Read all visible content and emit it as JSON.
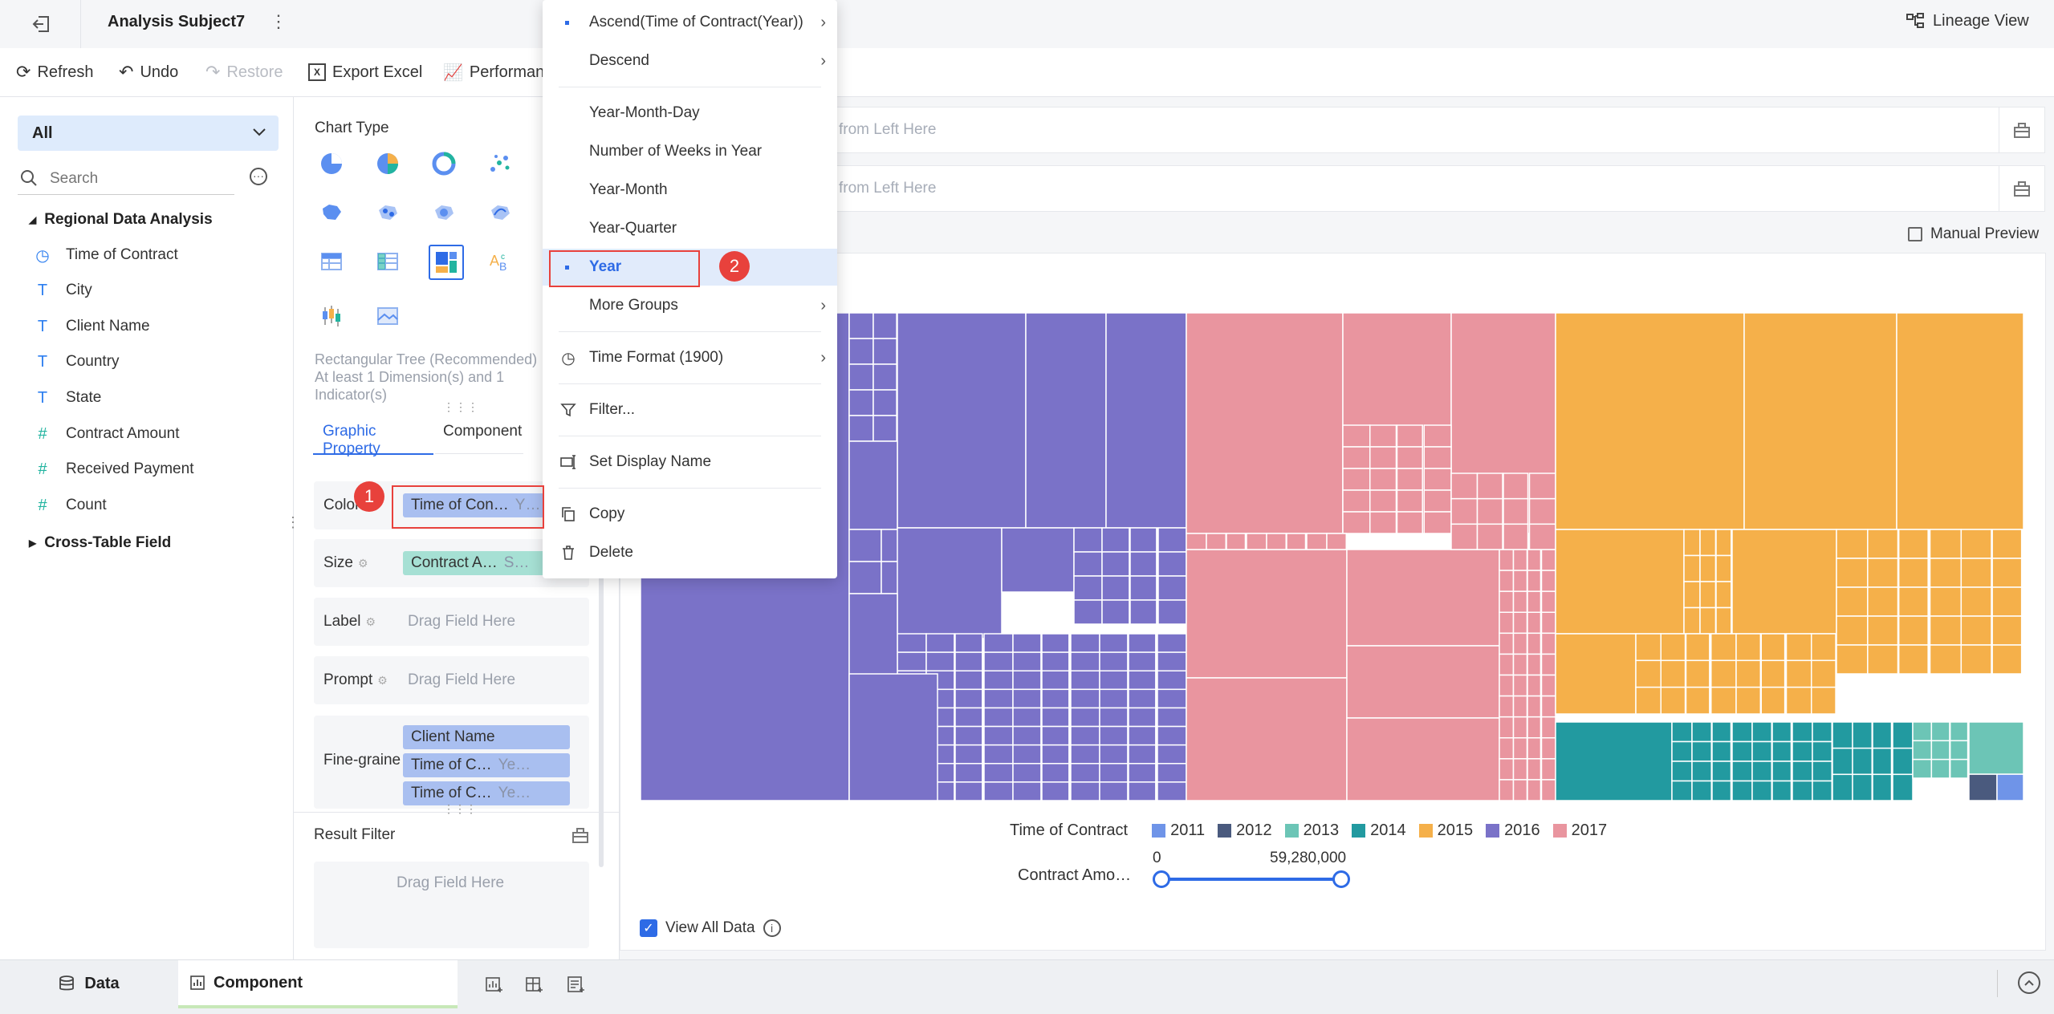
{
  "topbar": {
    "title": "Analysis Subject7",
    "lineage_view": "Lineage View"
  },
  "toolbar": {
    "refresh": "Refresh",
    "undo": "Undo",
    "restore": "Restore",
    "export_excel": "Export Excel",
    "performance": "Performanc"
  },
  "left": {
    "selector": "All",
    "search_placeholder": "Search",
    "group1": "Regional Data Analysis",
    "fields": [
      {
        "label": "Time of Contract",
        "type": "time"
      },
      {
        "label": "City",
        "type": "text"
      },
      {
        "label": "Client Name",
        "type": "text"
      },
      {
        "label": "Country",
        "type": "text"
      },
      {
        "label": "State",
        "type": "text"
      },
      {
        "label": "Contract Amount",
        "type": "number"
      },
      {
        "label": "Received Payment",
        "type": "number"
      },
      {
        "label": "Count",
        "type": "number"
      }
    ],
    "group2": "Cross-Table Field"
  },
  "mid": {
    "chart_type_label": "Chart Type",
    "chart_desc": "Rectangular Tree (Recommended) At least 1 Dimension(s) and 1 Indicator(s)",
    "tabs": [
      "Graphic Property",
      "Component"
    ],
    "props": {
      "color_label": "Color",
      "color_value": "Time of Con…",
      "color_sub": "Y…",
      "size_label": "Size",
      "size_value": "Contract A…",
      "size_sub": "S…",
      "label_label": "Label",
      "prompt_label": "Prompt",
      "fine_label": "Fine-graine",
      "drag_here": "Drag Field Here",
      "fine_pills": [
        {
          "value": "Client Name",
          "sub": ""
        },
        {
          "value": "Time of C…",
          "sub": "Ye…"
        },
        {
          "value": "Time of C…",
          "sub": "Ye…"
        }
      ]
    },
    "result_filter": "Result Filter",
    "result_drag": "Drag Field Here"
  },
  "right": {
    "drop1": "from Left Here",
    "drop2": "from Left Here",
    "manual_preview": "Manual Preview",
    "view_all_data": "View All Data",
    "legend_title": "Time of Contract",
    "size_legend_title": "Contract Amo…",
    "size_min": "0",
    "size_max": "59,280,000"
  },
  "chart_data": {
    "type": "treemap",
    "legend": [
      {
        "name": "2011",
        "color": "#6f94e8"
      },
      {
        "name": "2012",
        "color": "#4a5a7e"
      },
      {
        "name": "2013",
        "color": "#6cc5b6"
      },
      {
        "name": "2014",
        "color": "#229aa0"
      },
      {
        "name": "2015",
        "color": "#f5b04a"
      },
      {
        "name": "2016",
        "color": "#7a72c8"
      },
      {
        "name": "2017",
        "color": "#e9959f"
      }
    ],
    "size_range": [
      0,
      59280000
    ]
  },
  "menu": {
    "items": [
      {
        "label": "Ascend(Time of Contract(Year))",
        "arrow": true,
        "dot": true
      },
      {
        "label": "Descend",
        "arrow": true
      },
      {
        "label": "Year-Month-Day"
      },
      {
        "label": "Number of Weeks in Year"
      },
      {
        "label": "Year-Month"
      },
      {
        "label": "Year-Quarter"
      },
      {
        "label": "Year",
        "selected": true,
        "dot": true
      },
      {
        "label": "More Groups",
        "arrow": true
      },
      {
        "label": "Time Format  (1900)",
        "arrow": true
      },
      {
        "label": "Filter..."
      },
      {
        "label": "Set Display Name"
      },
      {
        "label": "Copy"
      },
      {
        "label": "Delete"
      }
    ]
  },
  "annotations": {
    "badge1": "1",
    "badge2": "2"
  },
  "bottom": {
    "data_tab": "Data",
    "component_tab": "Component"
  },
  "colors": {
    "accent": "#2e6be6",
    "highlight": "#e8413c"
  }
}
